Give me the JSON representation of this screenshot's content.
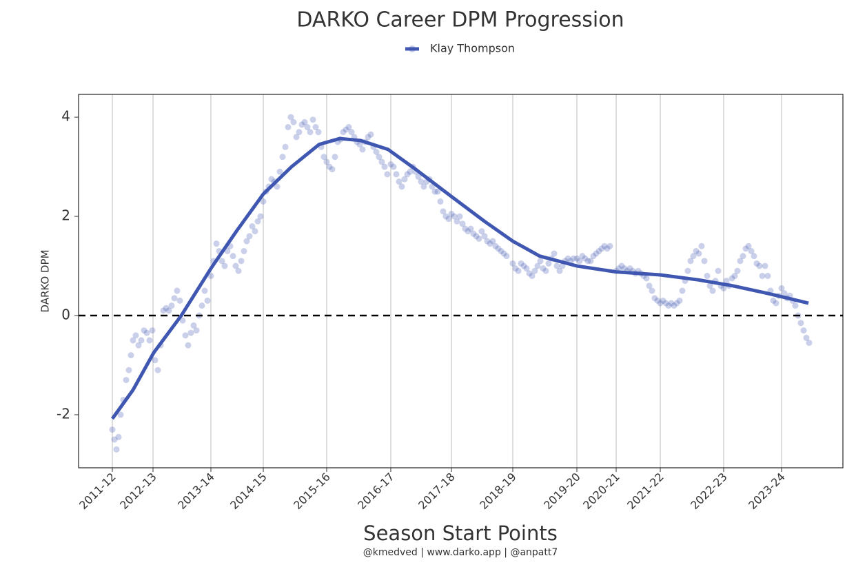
{
  "chart_data": {
    "type": "scatter",
    "title": "DARKO Career DPM Progression",
    "x_label": "Season Start Points",
    "y_label": "DARKO DPM",
    "caption": "@kmedved | www.darko.app | @anpatt7",
    "legend": "top",
    "grid": true,
    "hline": 0,
    "xlim": [
      -49,
      1060
    ],
    "ylim": [
      -3.07,
      4.46
    ],
    "yticks": [
      -2,
      0,
      2,
      4
    ],
    "xticks": [
      {
        "value": 0,
        "label": "2011-12"
      },
      {
        "value": 59,
        "label": "2012-13"
      },
      {
        "value": 143,
        "label": "2013-14"
      },
      {
        "value": 219,
        "label": "2014-15"
      },
      {
        "value": 311,
        "label": "2015-16"
      },
      {
        "value": 404,
        "label": "2016-17"
      },
      {
        "value": 492,
        "label": "2017-18"
      },
      {
        "value": 581,
        "label": "2018-19"
      },
      {
        "value": 674,
        "label": "2019-20"
      },
      {
        "value": 731,
        "label": "2020-21"
      },
      {
        "value": 795,
        "label": "2021-22"
      },
      {
        "value": 887,
        "label": "2022-23"
      },
      {
        "value": 971,
        "label": "2023-24"
      }
    ],
    "series": [
      {
        "name": "Klay Thompson",
        "color": "#3f57b0",
        "x": [
          0,
          3,
          6,
          9,
          12,
          16,
          20,
          24,
          27,
          30,
          34,
          38,
          42,
          46,
          50,
          54,
          58,
          62,
          66,
          70,
          74,
          78,
          82,
          86,
          90,
          94,
          98,
          102,
          106,
          110,
          114,
          118,
          122,
          126,
          130,
          134,
          138,
          143,
          147,
          151,
          155,
          159,
          163,
          167,
          171,
          175,
          179,
          183,
          187,
          191,
          195,
          199,
          203,
          207,
          211,
          215,
          219,
          223,
          227,
          231,
          235,
          239,
          243,
          247,
          251,
          255,
          259,
          263,
          267,
          271,
          275,
          279,
          283,
          287,
          291,
          295,
          299,
          303,
          307,
          311,
          315,
          319,
          323,
          327,
          331,
          335,
          339,
          343,
          347,
          351,
          355,
          359,
          363,
          367,
          371,
          375,
          379,
          383,
          387,
          391,
          395,
          399,
          404,
          408,
          412,
          416,
          420,
          424,
          428,
          432,
          436,
          440,
          444,
          448,
          452,
          456,
          460,
          464,
          468,
          472,
          476,
          480,
          484,
          488,
          492,
          496,
          500,
          504,
          508,
          512,
          516,
          520,
          524,
          528,
          532,
          536,
          540,
          544,
          548,
          552,
          556,
          560,
          564,
          568,
          572,
          581,
          585,
          589,
          593,
          597,
          601,
          605,
          609,
          613,
          617,
          621,
          625,
          629,
          633,
          637,
          641,
          645,
          649,
          653,
          657,
          661,
          665,
          669,
          674,
          678,
          682,
          686,
          690,
          694,
          698,
          702,
          706,
          710,
          714,
          718,
          722,
          731,
          735,
          739,
          743,
          747,
          751,
          755,
          759,
          763,
          767,
          771,
          775,
          779,
          783,
          787,
          791,
          795,
          799,
          803,
          807,
          811,
          815,
          819,
          823,
          827,
          831,
          835,
          839,
          843,
          847,
          851,
          855,
          859,
          863,
          867,
          871,
          875,
          879,
          883,
          887,
          891,
          895,
          899,
          903,
          907,
          911,
          915,
          919,
          923,
          927,
          931,
          935,
          939,
          943,
          947,
          951,
          955,
          959,
          963,
          967,
          971,
          975,
          979,
          983,
          987,
          991,
          995,
          999,
          1003,
          1007,
          1011
        ],
        "values": [
          -2.3,
          -2.5,
          -2.7,
          -2.45,
          -2.0,
          -1.7,
          -1.3,
          -1.1,
          -0.8,
          -0.5,
          -0.4,
          -0.6,
          -0.5,
          -0.3,
          -0.35,
          -0.5,
          -0.3,
          -0.9,
          -1.1,
          -0.6,
          0.1,
          0.15,
          0.1,
          0.2,
          0.35,
          0.5,
          0.3,
          -0.1,
          -0.4,
          -0.6,
          -0.35,
          -0.2,
          -0.3,
          0.0,
          0.2,
          0.5,
          0.3,
          0.8,
          1.1,
          1.45,
          1.3,
          1.1,
          1.0,
          1.3,
          1.4,
          1.2,
          1.0,
          0.9,
          1.1,
          1.3,
          1.5,
          1.6,
          1.8,
          1.7,
          1.9,
          2.0,
          2.3,
          2.5,
          2.6,
          2.75,
          2.7,
          2.6,
          2.9,
          3.2,
          3.4,
          3.8,
          4.0,
          3.9,
          3.6,
          3.7,
          3.85,
          3.9,
          3.8,
          3.7,
          3.95,
          3.8,
          3.7,
          3.4,
          3.2,
          3.1,
          3.0,
          2.95,
          3.2,
          3.5,
          3.55,
          3.7,
          3.75,
          3.8,
          3.7,
          3.6,
          3.5,
          3.45,
          3.35,
          3.5,
          3.6,
          3.65,
          3.4,
          3.3,
          3.2,
          3.1,
          3.0,
          2.85,
          3.05,
          3.0,
          2.85,
          2.7,
          2.6,
          2.75,
          2.85,
          2.9,
          3.0,
          2.9,
          2.8,
          2.7,
          2.6,
          2.7,
          2.75,
          2.6,
          2.5,
          2.5,
          2.3,
          2.1,
          2.0,
          1.95,
          2.05,
          2.0,
          1.9,
          2.0,
          1.85,
          1.75,
          1.7,
          1.75,
          1.65,
          1.6,
          1.55,
          1.7,
          1.6,
          1.5,
          1.45,
          1.5,
          1.4,
          1.35,
          1.3,
          1.25,
          1.2,
          1.05,
          0.95,
          0.9,
          1.05,
          1.0,
          0.95,
          0.85,
          0.8,
          0.9,
          1.0,
          1.1,
          0.95,
          0.9,
          1.05,
          1.15,
          1.25,
          1.0,
          0.9,
          1.0,
          1.1,
          1.15,
          1.1,
          1.15,
          1.15,
          1.1,
          1.2,
          1.15,
          1.1,
          1.1,
          1.2,
          1.25,
          1.3,
          1.35,
          1.4,
          1.35,
          1.4,
          0.9,
          0.95,
          1.0,
          0.95,
          0.9,
          0.95,
          0.9,
          0.85,
          0.9,
          0.85,
          0.8,
          0.75,
          0.6,
          0.5,
          0.35,
          0.3,
          0.25,
          0.3,
          0.25,
          0.2,
          0.25,
          0.2,
          0.25,
          0.3,
          0.5,
          0.7,
          0.9,
          1.1,
          1.2,
          1.3,
          1.25,
          1.4,
          1.1,
          0.8,
          0.6,
          0.5,
          0.7,
          0.9,
          0.6,
          0.55,
          0.7,
          0.6,
          0.75,
          0.8,
          0.9,
          1.1,
          1.2,
          1.35,
          1.4,
          1.3,
          1.2,
          1.05,
          1.0,
          0.8,
          1.0,
          0.8,
          0.5,
          0.3,
          0.25,
          0.4,
          0.55,
          0.45,
          0.35,
          0.4,
          0.3,
          0.2,
          0.0,
          -0.15,
          -0.3,
          -0.45,
          -0.55
        ],
        "trend_x": [
          0,
          30,
          60,
          100,
          143,
          180,
          219,
          260,
          300,
          330,
          360,
          400,
          440,
          492,
          540,
          581,
          620,
          674,
          731,
          795,
          850,
          900,
          950,
          1010
        ],
        "trend_values": [
          -2.08,
          -1.5,
          -0.75,
          0.0,
          0.95,
          1.7,
          2.45,
          3.0,
          3.45,
          3.57,
          3.53,
          3.35,
          2.95,
          2.4,
          1.9,
          1.5,
          1.2,
          1.0,
          0.88,
          0.82,
          0.72,
          0.6,
          0.45,
          0.25
        ]
      }
    ]
  }
}
